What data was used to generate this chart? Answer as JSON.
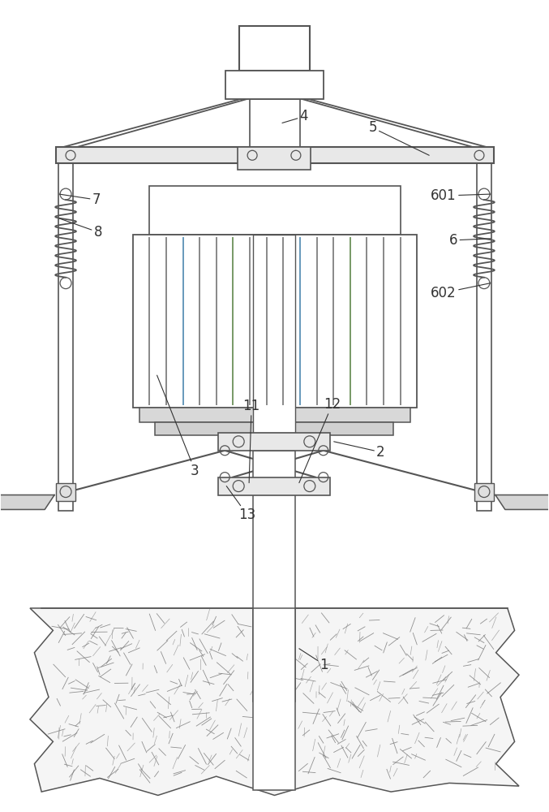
{
  "bg_color": "#ffffff",
  "line_color": "#555555",
  "label_color": "#333333",
  "fig_w": 6.77,
  "fig_h": 10.0,
  "dpi": 100
}
